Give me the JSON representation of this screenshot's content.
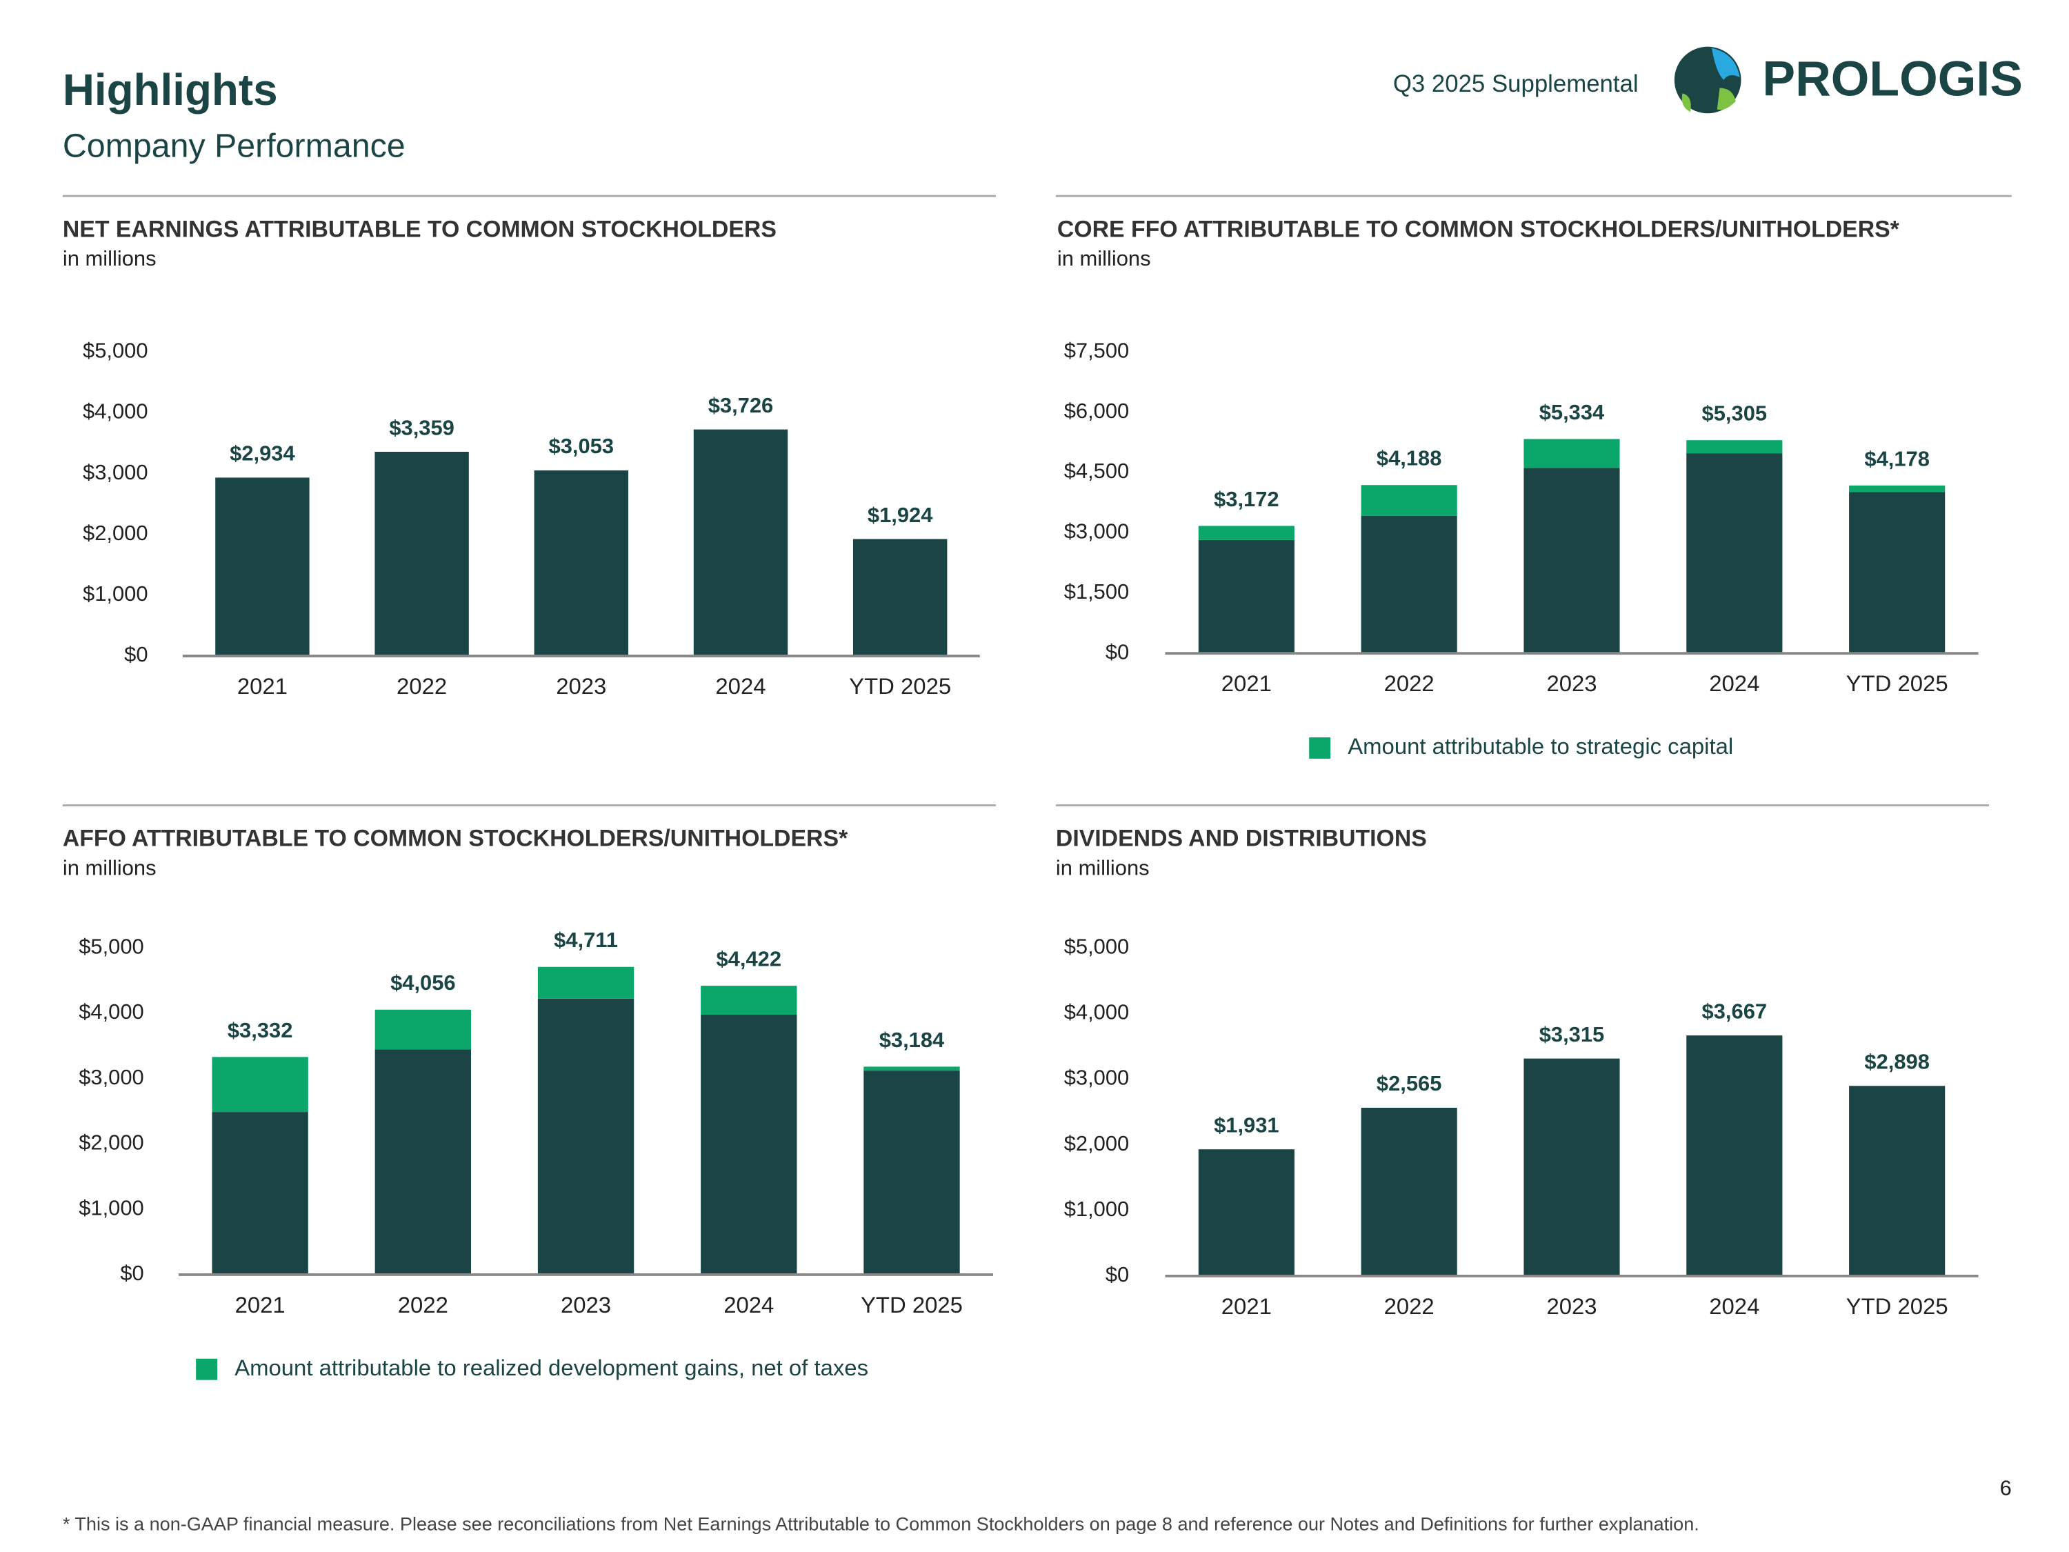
{
  "header": {
    "title": "Highlights",
    "subtitle": "Company Performance",
    "supplemental": "Q3 2025 Supplemental",
    "logo": "PROLOGIS"
  },
  "footnote": "* This is a non-GAAP financial measure. Please see reconciliations from Net Earnings Attributable to Common Stockholders on page 8 and reference our Notes and Definitions for further explanation.",
  "page_number": "6",
  "chart_data": [
    {
      "type": "bar",
      "title": "NET EARNINGS ATTRIBUTABLE TO COMMON STOCKHOLDERS",
      "subtitle": "in millions",
      "categories": [
        "2021",
        "2022",
        "2023",
        "2024",
        "YTD 2025"
      ],
      "values": [
        2934,
        3359,
        3053,
        3726,
        1924
      ],
      "value_labels": [
        "$2,934",
        "$3,359",
        "$3,053",
        "$3,726",
        "$1,924"
      ],
      "color": "#1b4544",
      "ylim": [
        0,
        5000
      ],
      "yticks": [
        {
          "value": 0,
          "label": "$0"
        },
        {
          "value": 1000,
          "label": "$1,000"
        },
        {
          "value": 2000,
          "label": "$2,000"
        },
        {
          "value": 3000,
          "label": "$3,000"
        },
        {
          "value": 4000,
          "label": "$4,000"
        },
        {
          "value": 5000,
          "label": "$5,000"
        }
      ]
    },
    {
      "type": "stacked_bar",
      "title": "CORE FFO ATTRIBUTABLE TO COMMON STOCKHOLDERS/UNITHOLDERS*",
      "subtitle": "in millions",
      "categories": [
        "2021",
        "2022",
        "2023",
        "2024",
        "YTD 2025"
      ],
      "series": [
        {
          "color": "#1b4544",
          "values": [
            2822,
            3420,
            4615,
            4980,
            4017
          ]
        },
        {
          "name": "Amount attributable to strategic capital",
          "color": "#0aa66a",
          "values": [
            350,
            768,
            719,
            325,
            161
          ]
        }
      ],
      "totals": {
        "values": [
          3172,
          4188,
          5334,
          5305,
          4178
        ],
        "value_labels": [
          "$3,172",
          "$4,188",
          "$5,334",
          "$5,305",
          "$4,178"
        ]
      },
      "legend": "bottom",
      "ylim": [
        0,
        7500
      ],
      "yticks": [
        {
          "value": 0,
          "label": "$0"
        },
        {
          "value": 1500,
          "label": "$1,500"
        },
        {
          "value": 3000,
          "label": "$3,000"
        },
        {
          "value": 4500,
          "label": "$4,500"
        },
        {
          "value": 6000,
          "label": "$6,000"
        },
        {
          "value": 7500,
          "label": "$7,500"
        }
      ]
    },
    {
      "type": "stacked_bar",
      "title": "AFFO ATTRIBUTABLE TO COMMON STOCKHOLDERS/UNITHOLDERS*",
      "subtitle": "in millions",
      "categories": [
        "2021",
        "2022",
        "2023",
        "2024",
        "YTD 2025"
      ],
      "series": [
        {
          "color": "#1b4544",
          "values": [
            2490,
            3449,
            4225,
            3980,
            3123
          ]
        },
        {
          "name": "Amount attributable to realized development gains, net of taxes",
          "color": "#0aa66a",
          "values": [
            842,
            607,
            486,
            442,
            61
          ]
        }
      ],
      "totals": {
        "values": [
          3332,
          4056,
          4711,
          4422,
          3184
        ],
        "value_labels": [
          "$3,332",
          "$4,056",
          "$4,711",
          "$4,422",
          "$3,184"
        ]
      },
      "legend": "bottom",
      "ylim": [
        0,
        5000
      ],
      "yticks": [
        {
          "value": 0,
          "label": "$0"
        },
        {
          "value": 1000,
          "label": "$1,000"
        },
        {
          "value": 2000,
          "label": "$2,000"
        },
        {
          "value": 3000,
          "label": "$3,000"
        },
        {
          "value": 4000,
          "label": "$4,000"
        },
        {
          "value": 5000,
          "label": "$5,000"
        }
      ]
    },
    {
      "type": "bar",
      "title": "DIVIDENDS AND DISTRIBUTIONS",
      "subtitle": "in millions",
      "categories": [
        "2021",
        "2022",
        "2023",
        "2024",
        "YTD 2025"
      ],
      "values": [
        1931,
        2565,
        3315,
        3667,
        2898
      ],
      "value_labels": [
        "$1,931",
        "$2,565",
        "$3,315",
        "$3,667",
        "$2,898"
      ],
      "color": "#1b4544",
      "ylim": [
        0,
        5000
      ],
      "yticks": [
        {
          "value": 0,
          "label": "$0"
        },
        {
          "value": 1000,
          "label": "$1,000"
        },
        {
          "value": 2000,
          "label": "$2,000"
        },
        {
          "value": 3000,
          "label": "$3,000"
        },
        {
          "value": 4000,
          "label": "$4,000"
        },
        {
          "value": 5000,
          "label": "$5,000"
        }
      ]
    }
  ]
}
